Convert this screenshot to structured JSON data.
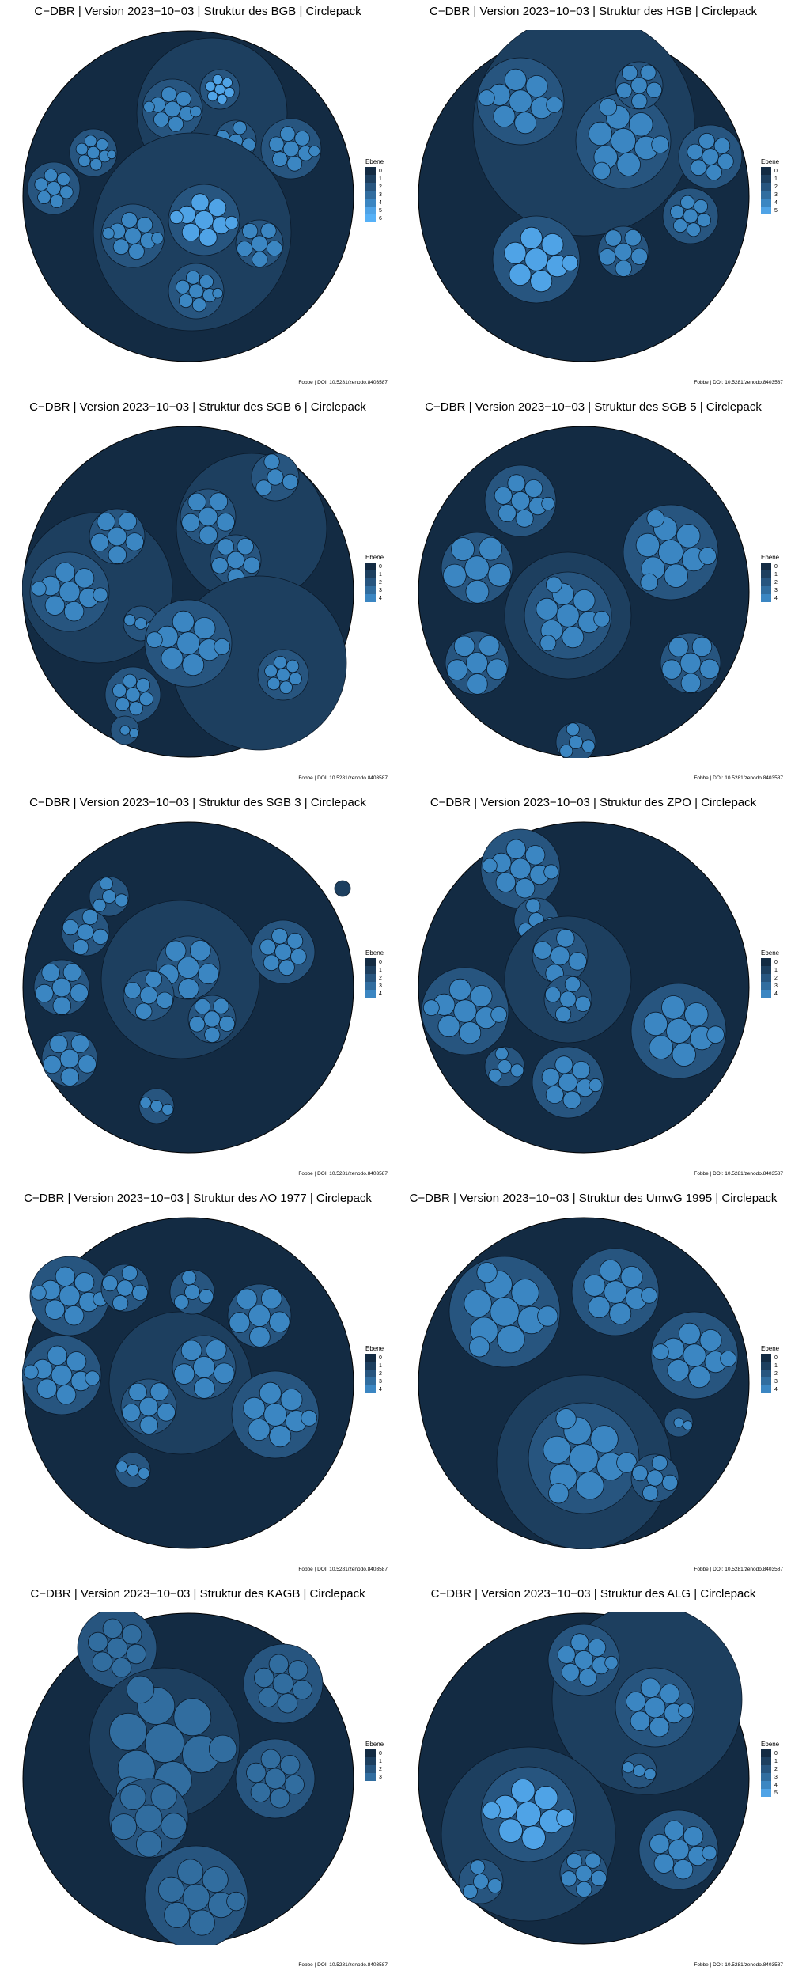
{
  "colors": {
    "levels": [
      "#132b43",
      "#1d3f5f",
      "#27557f",
      "#316d9f",
      "#3b86c2",
      "#4fa3e6",
      "#56b1f7"
    ],
    "stroke": "#0b1a2a"
  },
  "legend_title": "Ebene",
  "caption": "Fobbe | DOI: 10.5281/zenodo.8403587",
  "chart_data": [
    {
      "type": "circlepack",
      "title": "C−DBR | Version 2023−10−03 | Struktur des BGB | Circlepack",
      "legend": {
        "title": "Ebene",
        "levels": [
          "0",
          "1",
          "2",
          "3",
          "4",
          "5",
          "6"
        ]
      },
      "max_level": 6
    },
    {
      "type": "circlepack",
      "title": "C−DBR | Version 2023−10−03 | Struktur des HGB | Circlepack",
      "legend": {
        "title": "Ebene",
        "levels": [
          "0",
          "1",
          "2",
          "3",
          "4",
          "5"
        ]
      },
      "max_level": 5
    },
    {
      "type": "circlepack",
      "title": "C−DBR | Version 2023−10−03 | Struktur des SGB 6 | Circlepack",
      "legend": {
        "title": "Ebene",
        "levels": [
          "0",
          "1",
          "2",
          "3",
          "4"
        ]
      },
      "max_level": 4
    },
    {
      "type": "circlepack",
      "title": "C−DBR | Version 2023−10−03 | Struktur des SGB 5 | Circlepack",
      "legend": {
        "title": "Ebene",
        "levels": [
          "0",
          "1",
          "2",
          "3",
          "4"
        ]
      },
      "max_level": 4
    },
    {
      "type": "circlepack",
      "title": "C−DBR | Version 2023−10−03 | Struktur des SGB 3 | Circlepack",
      "legend": {
        "title": "Ebene",
        "levels": [
          "0",
          "1",
          "2",
          "3",
          "4"
        ]
      },
      "max_level": 4
    },
    {
      "type": "circlepack",
      "title": "C−DBR | Version 2023−10−03 | Struktur des ZPO | Circlepack",
      "legend": {
        "title": "Ebene",
        "levels": [
          "0",
          "1",
          "2",
          "3",
          "4"
        ]
      },
      "max_level": 4
    },
    {
      "type": "circlepack",
      "title": "C−DBR | Version 2023−10−03 | Struktur des AO 1977 | Circlepack",
      "legend": {
        "title": "Ebene",
        "levels": [
          "0",
          "1",
          "2",
          "3",
          "4"
        ]
      },
      "max_level": 4
    },
    {
      "type": "circlepack",
      "title": "C−DBR | Version 2023−10−03 | Struktur des UmwG 1995 | Circlepack",
      "legend": {
        "title": "Ebene",
        "levels": [
          "0",
          "1",
          "2",
          "3",
          "4"
        ]
      },
      "max_level": 4
    },
    {
      "type": "circlepack",
      "title": "C−DBR | Version 2023−10−03 | Struktur des KAGB | Circlepack",
      "legend": {
        "title": "Ebene",
        "levels": [
          "0",
          "1",
          "2",
          "3"
        ]
      },
      "max_level": 3
    },
    {
      "type": "circlepack",
      "title": "C−DBR | Version 2023−10−03 | Struktur des ALG | Circlepack",
      "legend": {
        "title": "Ebene",
        "levels": [
          "0",
          "1",
          "2",
          "3",
          "4",
          "5"
        ]
      },
      "max_level": 5
    }
  ]
}
